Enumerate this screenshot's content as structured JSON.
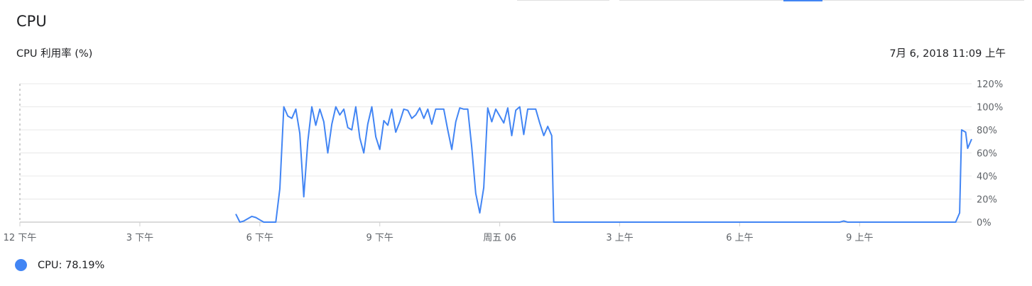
{
  "page": {
    "title": "CPU"
  },
  "chart_header": {
    "title": "CPU 利用率 (%)",
    "timestamp": "7月 6, 2018 11:09 上午"
  },
  "legend": {
    "text": "CPU: 78.19%"
  },
  "colors": {
    "series": "#4285f4",
    "grid": "#e8e8e8",
    "axis": "#cfcfcf",
    "tick_text": "#5f6368",
    "top_accent": "#4285f4"
  },
  "chart_data": {
    "type": "line",
    "title": "CPU 利用率 (%)",
    "xlabel": "",
    "ylabel": "",
    "x_unit": "hours since 12 下午",
    "xlim": [
      0,
      23.8
    ],
    "ylim": [
      0,
      120
    ],
    "y_ticks": [
      0,
      20,
      40,
      60,
      80,
      100,
      120
    ],
    "y_tick_labels": [
      "0%",
      "20%",
      "40%",
      "60%",
      "80%",
      "100%",
      "120%"
    ],
    "x_ticks": [
      0,
      3,
      6,
      9,
      12,
      15,
      18,
      21
    ],
    "x_tick_labels": [
      "12 下午",
      "3 下午",
      "6 下午",
      "9 下午",
      "周五 06",
      "3 上午",
      "6 上午",
      "9 上午"
    ],
    "grid": true,
    "legend_position": "bottom-left",
    "series": [
      {
        "name": "CPU",
        "color": "#4285f4",
        "points": [
          [
            5.4,
            7
          ],
          [
            5.5,
            0
          ],
          [
            5.6,
            1
          ],
          [
            5.8,
            5
          ],
          [
            5.9,
            4
          ],
          [
            6.0,
            2
          ],
          [
            6.1,
            0
          ],
          [
            6.4,
            0
          ],
          [
            6.5,
            29
          ],
          [
            6.6,
            100
          ],
          [
            6.7,
            92
          ],
          [
            6.8,
            90
          ],
          [
            6.9,
            98
          ],
          [
            7.0,
            77
          ],
          [
            7.1,
            22
          ],
          [
            7.2,
            70
          ],
          [
            7.3,
            100
          ],
          [
            7.4,
            84
          ],
          [
            7.5,
            98
          ],
          [
            7.6,
            87
          ],
          [
            7.7,
            60
          ],
          [
            7.8,
            85
          ],
          [
            7.9,
            100
          ],
          [
            8.0,
            93
          ],
          [
            8.1,
            98
          ],
          [
            8.2,
            82
          ],
          [
            8.3,
            80
          ],
          [
            8.4,
            100
          ],
          [
            8.5,
            73
          ],
          [
            8.6,
            60
          ],
          [
            8.7,
            85
          ],
          [
            8.8,
            100
          ],
          [
            8.9,
            74
          ],
          [
            9.0,
            63
          ],
          [
            9.1,
            88
          ],
          [
            9.2,
            84
          ],
          [
            9.3,
            98
          ],
          [
            9.4,
            78
          ],
          [
            9.5,
            87
          ],
          [
            9.6,
            98
          ],
          [
            9.7,
            97
          ],
          [
            9.8,
            90
          ],
          [
            9.9,
            93
          ],
          [
            10.0,
            99
          ],
          [
            10.1,
            90
          ],
          [
            10.2,
            98
          ],
          [
            10.3,
            85
          ],
          [
            10.4,
            98
          ],
          [
            10.5,
            98
          ],
          [
            10.6,
            98
          ],
          [
            10.7,
            80
          ],
          [
            10.8,
            63
          ],
          [
            10.9,
            87
          ],
          [
            11.0,
            99
          ],
          [
            11.1,
            98
          ],
          [
            11.2,
            98
          ],
          [
            11.3,
            65
          ],
          [
            11.4,
            25
          ],
          [
            11.5,
            8
          ],
          [
            11.6,
            30
          ],
          [
            11.7,
            99
          ],
          [
            11.8,
            87
          ],
          [
            11.9,
            98
          ],
          [
            12.0,
            92
          ],
          [
            12.1,
            86
          ],
          [
            12.2,
            99
          ],
          [
            12.3,
            75
          ],
          [
            12.4,
            97
          ],
          [
            12.5,
            100
          ],
          [
            12.6,
            76
          ],
          [
            12.7,
            98
          ],
          [
            12.8,
            98
          ],
          [
            12.9,
            98
          ],
          [
            13.0,
            86
          ],
          [
            13.1,
            75
          ],
          [
            13.2,
            83
          ],
          [
            13.3,
            75
          ],
          [
            13.35,
            0
          ],
          [
            20.5,
            0
          ],
          [
            20.6,
            1
          ],
          [
            20.7,
            0
          ],
          [
            23.4,
            0
          ],
          [
            23.5,
            8
          ],
          [
            23.55,
            80
          ],
          [
            23.65,
            78
          ],
          [
            23.7,
            64
          ],
          [
            23.8,
            72
          ]
        ]
      }
    ]
  }
}
